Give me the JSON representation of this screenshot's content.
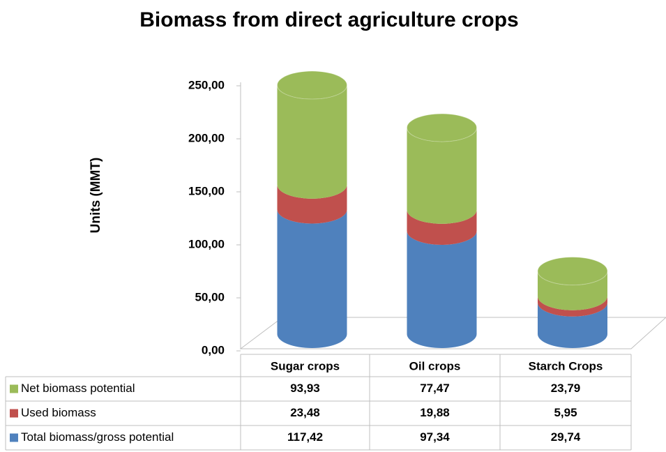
{
  "chart_data": {
    "type": "bar3d_stacked",
    "title": "Biomass from direct agriculture crops",
    "y_label": "Units (MMT)",
    "categories": [
      "Sugar crops",
      "Oil crops",
      "Starch Crops"
    ],
    "series": [
      {
        "name": "Net biomass potential",
        "color": "#9bbb59",
        "values": [
          93.93,
          77.47,
          23.79
        ],
        "value_labels": [
          "93,93",
          "77,47",
          "23,79"
        ]
      },
      {
        "name": "Used biomass",
        "color": "#c0504d",
        "values": [
          23.48,
          19.88,
          5.95
        ],
        "value_labels": [
          "23,48",
          "19,88",
          "5,95"
        ]
      },
      {
        "name": "Total biomass/gross potential",
        "color": "#4f81bd",
        "values": [
          117.42,
          97.34,
          29.74
        ],
        "value_labels": [
          "117,42",
          "97,34",
          "29,74"
        ]
      }
    ],
    "ylim": [
      0,
      250
    ],
    "yticks": [
      {
        "value": 0,
        "label": "0,00"
      },
      {
        "value": 50,
        "label": "50,00"
      },
      {
        "value": 100,
        "label": "100,00"
      },
      {
        "value": 150,
        "label": "150,00"
      },
      {
        "value": 200,
        "label": "200,00"
      },
      {
        "value": 250,
        "label": "250,00"
      }
    ]
  }
}
